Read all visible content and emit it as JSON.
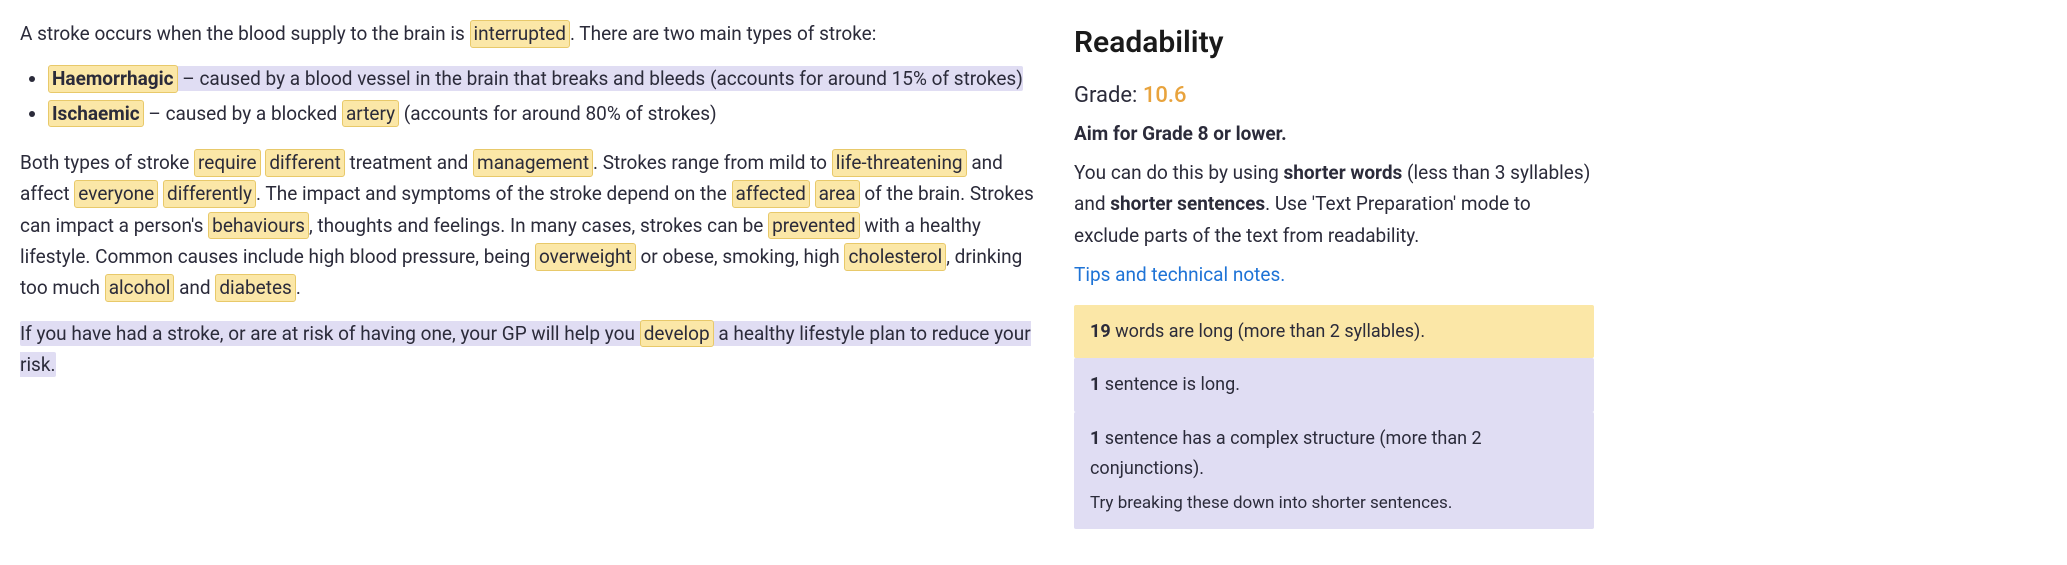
{
  "editor": {
    "intro_pre": "A stroke occurs when the blood supply to the brain is ",
    "intro_hl": "interrupted",
    "intro_post": ". There are two main types of stroke:",
    "bullet1_bold": "Haemorrhagic",
    "bullet1_rest": " – caused by a blood vessel in the brain that breaks and bleeds (accounts for around 15% of strokes)",
    "bullet1_highlight_full": true,
    "bullet2_bold": "Ischaemic",
    "bullet2_mid1": " – caused by a blocked ",
    "bullet2_hl": "artery",
    "bullet2_mid2": " (accounts for around 80% of strokes)",
    "p2_seg1": "Both types of stroke ",
    "p2_hl1": "require",
    "p2_seg2": " ",
    "p2_hl2": "different",
    "p2_seg3": " treatment and ",
    "p2_hl3": "management",
    "p2_seg4": ". Strokes range from mild to ",
    "p2_hl4": "life-threatening",
    "p2_seg5": " and affect ",
    "p2_hl5": "everyone",
    "p2_seg6": " ",
    "p2_hl6": "differently",
    "p2_seg7": ". The impact and symptoms of the stroke depend on the ",
    "p2_hl7": "affected",
    "p2_seg8": " ",
    "p2_hl8": "area",
    "p2_seg9": " of the brain. Strokes can impact a person's ",
    "p2_hl9": "behaviours",
    "p2_seg10": ", thoughts and feelings. In many cases, strokes can be ",
    "p2_hl10": "prevented",
    "p2_seg11": " with a healthy lifestyle. Common causes include high blood pressure, being ",
    "p2_hl11": "overweight",
    "p2_seg12": " or obese, smoking, high ",
    "p2_hl12": "cholesterol",
    "p2_seg13": ", drinking too much ",
    "p2_hl13": "alcohol",
    "p2_seg14": " and ",
    "p2_hl14": "diabetes",
    "p2_seg15": ".",
    "p3_pre": "If you have had a stroke, or are at risk of having one, your GP will help you ",
    "p3_hl": "develop",
    "p3_post": " a healthy lifestyle plan to reduce your risk."
  },
  "sidebar": {
    "title": "Readability",
    "grade_label": "Grade: ",
    "grade_value": "10.6",
    "aim": "Aim for Grade 8 or lower.",
    "advice_pre": "You can do this by using ",
    "advice_b1": "shorter words",
    "advice_mid": " (less than 3 syllables) and ",
    "advice_b2": "shorter sentences",
    "advice_post": ". Use 'Text Preparation' mode to exclude parts of the text from readability.",
    "link": "Tips and technical notes.",
    "stat1_count": "19",
    "stat1_rest": " words are long (more than 2 syllables).",
    "stat2_count": "1",
    "stat2_rest": " sentence is long.",
    "stat3_count": "1",
    "stat3_rest": " sentence has a complex structure (more than 2 conjunctions).",
    "stat3_hint": "Try breaking these down into shorter sentences."
  },
  "colors": {
    "word_highlight_bg": "#fbe7a7",
    "word_highlight_border": "#e8c96a",
    "sentence_highlight_bg": "#e0ddf3",
    "grade_value": "#e8a33d",
    "link": "#1e73d6"
  }
}
